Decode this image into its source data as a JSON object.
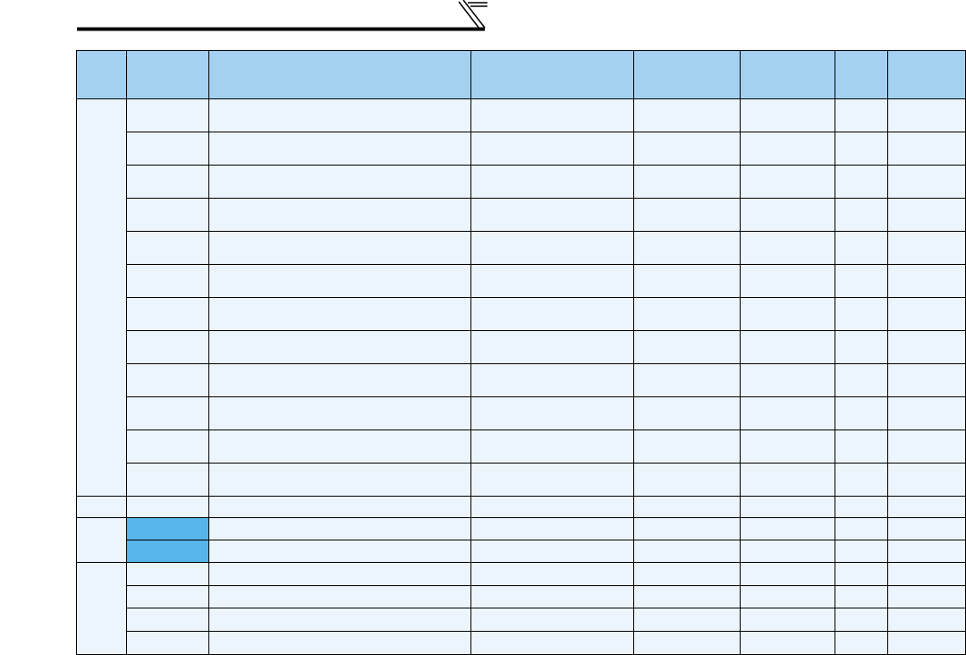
{
  "colors": {
    "header_fill": "#a4d1f2",
    "body_fill": "#edf5fc",
    "highlight_fill": "#58b5e9",
    "border": "#000000",
    "rule": "#000000"
  },
  "table": {
    "header": [
      "",
      "",
      "",
      "",
      "",
      "",
      "",
      ""
    ],
    "row_groups": [
      {
        "rows": 12,
        "highlight_col2": false
      },
      {
        "rows": 1,
        "highlight_col2": false
      },
      {
        "rows": 2,
        "highlight_col2": true
      },
      {
        "rows": 4,
        "highlight_col2": false
      }
    ]
  }
}
